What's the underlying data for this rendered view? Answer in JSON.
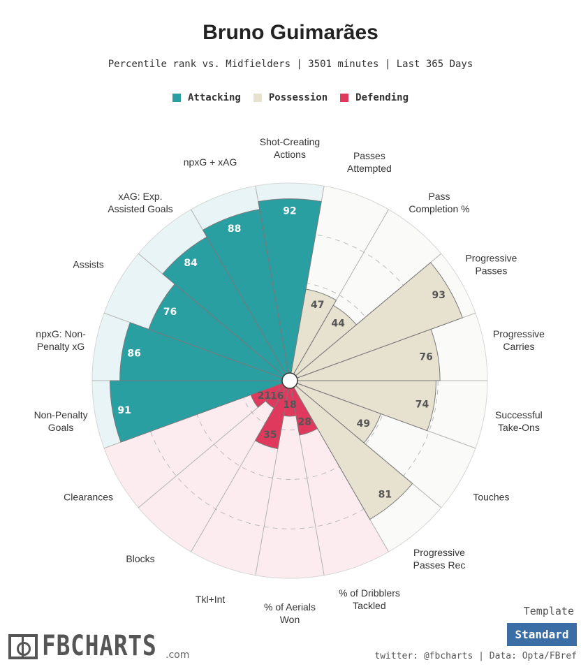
{
  "chart_data": {
    "type": "polar-bar",
    "title": "Bruno Guimarães",
    "subtitle": "Percentile rank vs. Midfielders | 3501 minutes | Last 365 Days",
    "range": [
      0,
      100
    ],
    "legend": [
      {
        "name": "Attacking",
        "color": "#2a9fa2"
      },
      {
        "name": "Possession",
        "color": "#e7e1d0"
      },
      {
        "name": "Defending",
        "color": "#df3a5d"
      }
    ],
    "categories": [
      {
        "label": [
          "Shot-Creating",
          "Actions"
        ],
        "value": 92,
        "group": "Attacking"
      },
      {
        "label": [
          "Passes",
          "Attempted"
        ],
        "value": 47,
        "group": "Possession"
      },
      {
        "label": [
          "Pass",
          "Completion %"
        ],
        "value": 44,
        "group": "Possession"
      },
      {
        "label": [
          "Progressive",
          "Passes"
        ],
        "value": 93,
        "group": "Possession"
      },
      {
        "label": [
          "Progressive",
          "Carries"
        ],
        "value": 76,
        "group": "Possession"
      },
      {
        "label": [
          "Successful",
          "Take-Ons"
        ],
        "value": 74,
        "group": "Possession"
      },
      {
        "label": [
          "Touches"
        ],
        "value": 49,
        "group": "Possession"
      },
      {
        "label": [
          "Progressive",
          "Passes Rec"
        ],
        "value": 81,
        "group": "Possession"
      },
      {
        "label": [
          "% of Dribblers",
          "Tackled"
        ],
        "value": 28,
        "group": "Defending"
      },
      {
        "label": [
          "% of Aerials",
          "Won"
        ],
        "value": 18,
        "group": "Defending"
      },
      {
        "label": [
          "Tkl+Int"
        ],
        "value": 35,
        "group": "Defending"
      },
      {
        "label": [
          "Blocks"
        ],
        "value": 16,
        "group": "Defending"
      },
      {
        "label": [
          "Clearances"
        ],
        "value": 21,
        "group": "Defending"
      },
      {
        "label": [
          "Non-Penalty",
          "Goals"
        ],
        "value": 91,
        "group": "Attacking"
      },
      {
        "label": [
          "npxG: Non-",
          "Penalty xG"
        ],
        "value": 86,
        "group": "Attacking"
      },
      {
        "label": [
          "Assists"
        ],
        "value": 76,
        "group": "Attacking"
      },
      {
        "label": [
          "xAG: Exp.",
          "Assisted Goals"
        ],
        "value": 84,
        "group": "Attacking"
      },
      {
        "label": [
          "npxG + xAG"
        ],
        "value": 88,
        "group": "Attacking"
      }
    ],
    "group_styles": {
      "Attacking": {
        "fill": "#2a9fa2",
        "bg": "#e8f4f5",
        "text": "#ffffff"
      },
      "Possession": {
        "fill": "#e7e1d0",
        "bg": "#fafaf8",
        "text": "#555555"
      },
      "Defending": {
        "fill": "#df3a5d",
        "bg": "#fdecef",
        "text": "#555555"
      }
    }
  },
  "branding": {
    "logo_text": "FBCHARTS",
    "logo_suffix": ".com",
    "template_label": "Template",
    "template_button": "Standard",
    "credit": "twitter: @fbcharts | Data: Opta/FBref"
  }
}
